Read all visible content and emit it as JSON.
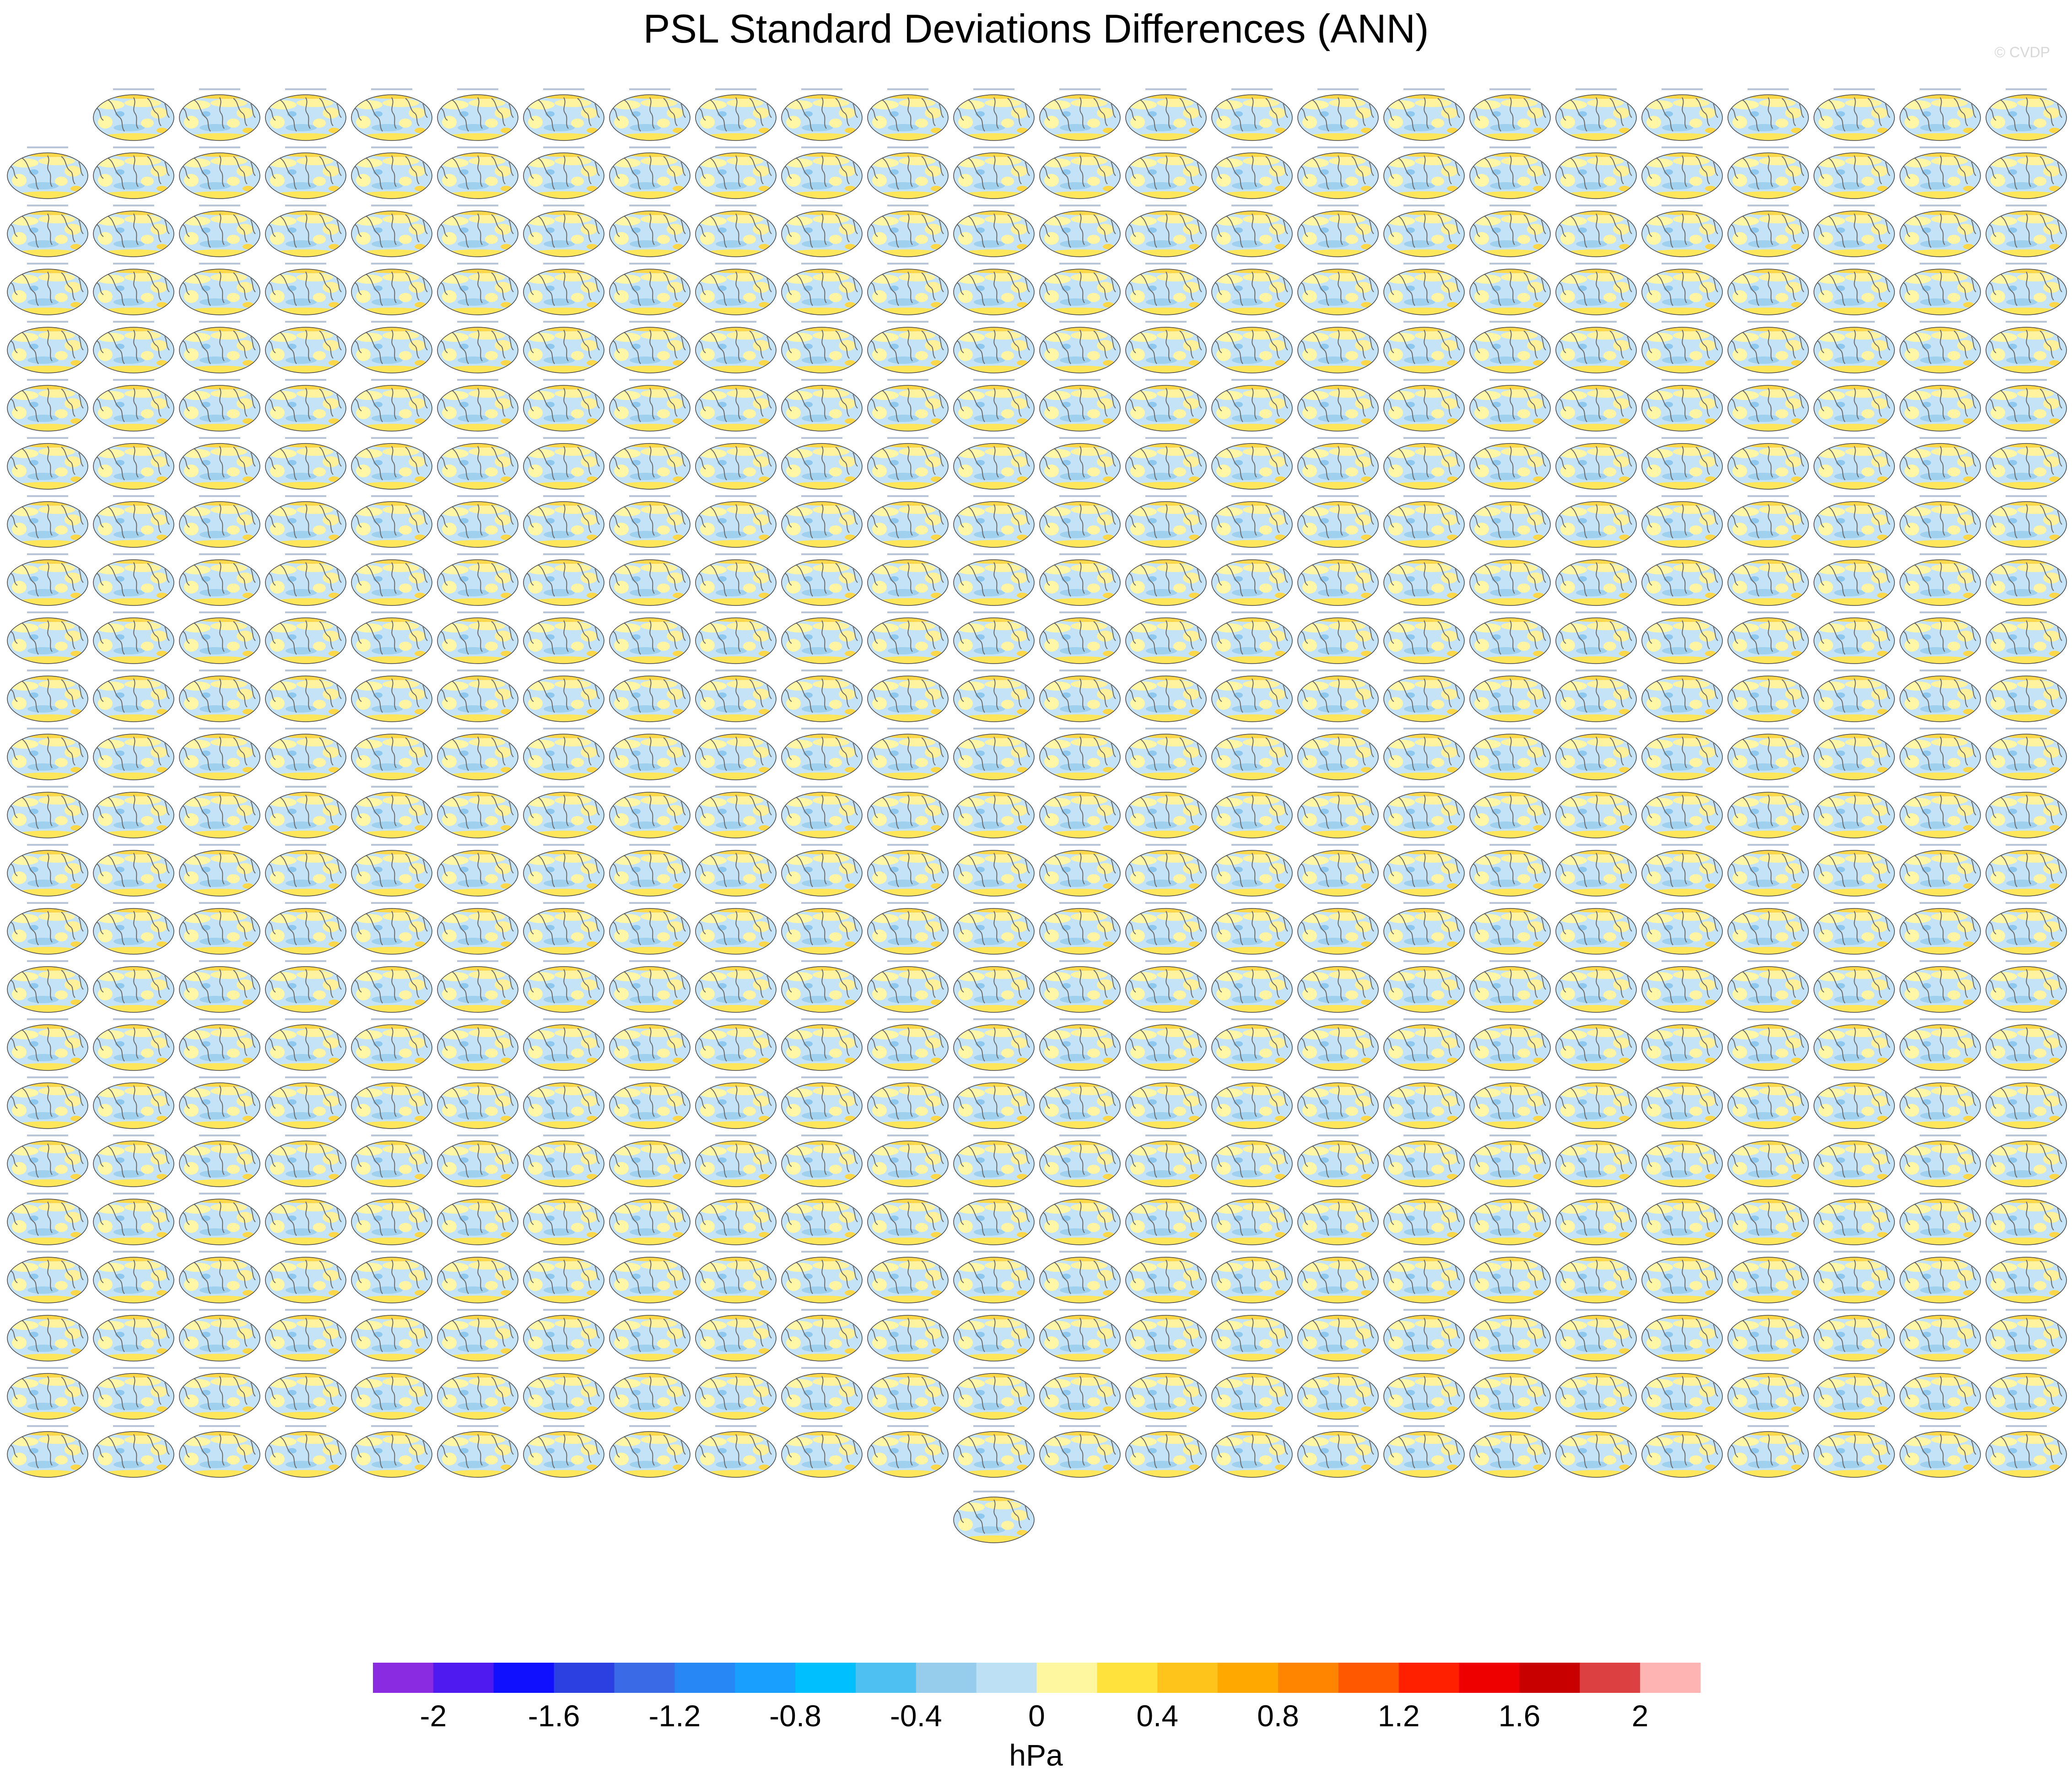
{
  "title": "PSL Standard Deviations Differences (ANN)",
  "watermark": "© CVDP",
  "colorbar": {
    "colors": [
      "#8a2be2",
      "#4f1af0",
      "#1010ff",
      "#2c3fe0",
      "#3a6ae6",
      "#2787f5",
      "#19a0ff",
      "#00bfff",
      "#4fc0f2",
      "#96cdec",
      "#bee0f4",
      "#fff7a0",
      "#ffe23c",
      "#ffc41c",
      "#ffa800",
      "#ff8400",
      "#ff5800",
      "#ff2000",
      "#ee0000",
      "#c80000",
      "#dc4040",
      "#ffb4b4"
    ],
    "ticks": [
      "-2",
      "-1.6",
      "-1.2",
      "-0.8",
      "-0.4",
      "0",
      "0.4",
      "0.8",
      "1.2",
      "1.6",
      "2"
    ],
    "tick_boundaries": [
      1,
      3,
      5,
      7,
      9,
      11,
      13,
      15,
      17,
      19,
      21
    ],
    "label": "hPa"
  },
  "chart_data": {
    "type": "map-panel-grid",
    "panel_rows": 25,
    "panel_columns": 24,
    "first_row_panel_count": 23,
    "last_row_panel_count": 1,
    "total_panels": 576,
    "value_range": [
      -2.4,
      2.4
    ],
    "units": "hPa"
  }
}
